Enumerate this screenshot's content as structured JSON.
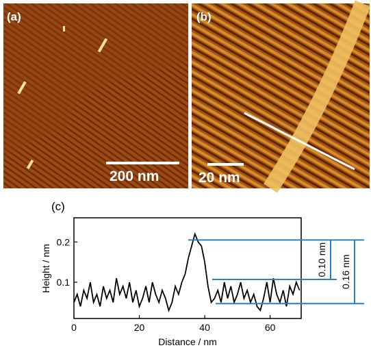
{
  "panels": {
    "a": {
      "label": "(a)",
      "scale_bar": "200 nm"
    },
    "b": {
      "label": "(b)",
      "scale_bar": "20 nm"
    }
  },
  "chart_data": {
    "type": "line",
    "panel_label": "(c)",
    "xlabel": "Distance / nm",
    "ylabel": "Height / nm",
    "x": [
      0,
      1,
      2,
      3,
      4,
      5,
      6,
      7,
      8,
      9,
      10,
      11,
      12,
      13,
      14,
      15,
      16,
      17,
      18,
      19,
      20,
      21,
      22,
      23,
      24,
      25,
      26,
      27,
      28,
      29,
      30,
      31,
      32,
      33,
      34,
      35,
      36,
      37,
      38,
      39,
      40,
      41,
      42,
      43,
      44,
      45,
      46,
      47,
      48,
      49,
      50,
      51,
      52,
      53,
      54,
      55,
      56,
      57,
      58,
      59,
      60,
      61,
      62,
      63,
      64,
      65,
      66,
      67,
      68,
      69
    ],
    "series": [
      {
        "color": "#000000",
        "values": [
          0.05,
          0.07,
          0.04,
          0.08,
          0.06,
          0.1,
          0.05,
          0.07,
          0.04,
          0.09,
          0.06,
          0.08,
          0.05,
          0.11,
          0.07,
          0.09,
          0.06,
          0.1,
          0.05,
          0.08,
          0.04,
          0.06,
          0.09,
          0.05,
          0.1,
          0.07,
          0.05,
          0.08,
          0.06,
          0.03,
          0.05,
          0.09,
          0.07,
          0.1,
          0.12,
          0.16,
          0.19,
          0.22,
          0.2,
          0.19,
          0.15,
          0.09,
          0.05,
          0.06,
          0.08,
          0.05,
          0.1,
          0.06,
          0.09,
          0.05,
          0.07,
          0.1,
          0.06,
          0.08,
          0.05,
          0.07,
          0.04,
          0.03,
          0.06,
          0.1,
          0.05,
          0.11,
          0.07,
          0.05,
          0.08,
          0.04,
          0.09,
          0.07,
          0.1,
          0.08
        ]
      }
    ],
    "xlim": [
      0,
      69.5
    ],
    "ylim": [
      0.01,
      0.26
    ],
    "xticks": [
      0,
      20,
      40,
      60
    ],
    "yticks": [
      0.1,
      0.2
    ],
    "levels": [
      0.205,
      0.107,
      0.047
    ],
    "level_color": "#2a7fc1",
    "annotations": [
      {
        "text": "0.10 nm"
      },
      {
        "text": "0.16 nm"
      }
    ]
  }
}
